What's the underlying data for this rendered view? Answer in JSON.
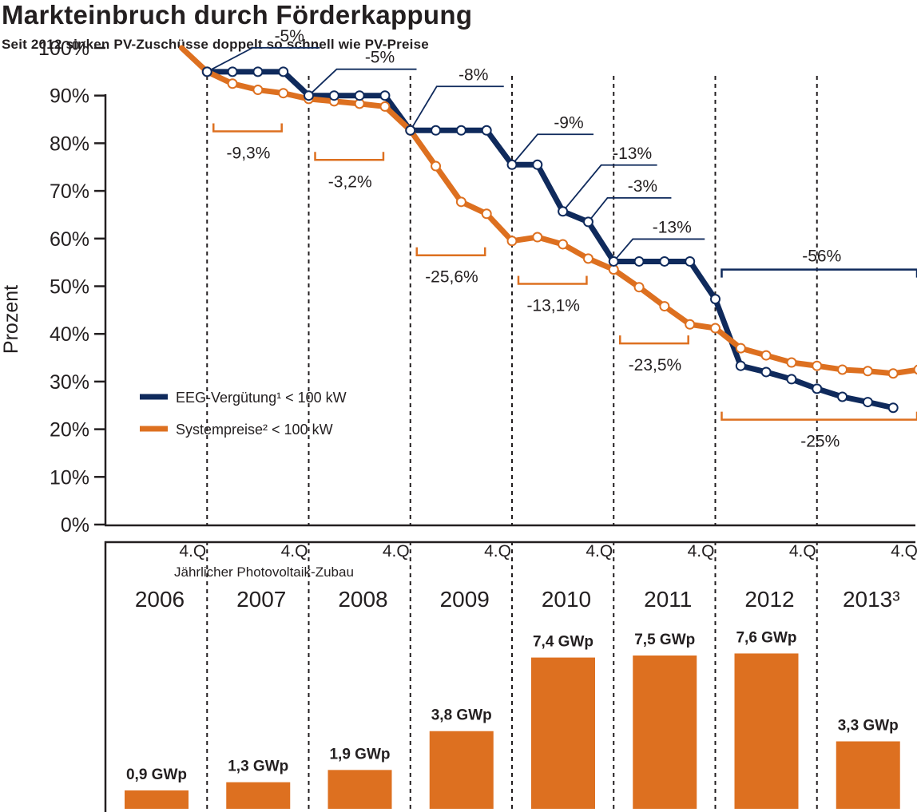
{
  "title": "Markteinbruch durch Förderkappung",
  "subtitle": "Seit 2012 sinken PV-Zuschüsse doppelt so schnell wie PV-Preise",
  "colors": {
    "eeg": "#0f2a5c",
    "system": "#dd7020",
    "text": "#231f20"
  },
  "chart_data": [
    {
      "type": "line",
      "ylabel": "Prozent",
      "ylim": [
        0,
        100
      ],
      "yticks": [
        "0%",
        "10%",
        "20%",
        "30%",
        "40%",
        "50%",
        "60%",
        "70%",
        "80%",
        "90%",
        "100%"
      ],
      "quarter_label": "4.Q",
      "years": [
        "2006",
        "2007",
        "2008",
        "2009",
        "2010",
        "2011",
        "2012",
        "2013³"
      ],
      "legend_position": "center-left",
      "legend": [
        {
          "label": "EEG-Vergütung¹ < 100 kW",
          "color": "#0f2a5c"
        },
        {
          "label": "Systempreise² < 100 kW",
          "color": "#dd7020"
        }
      ],
      "series": [
        {
          "name": "EEG-Vergütung¹ < 100 kW",
          "points": [
            [
              2007.0,
              95
            ],
            [
              2007.25,
              95
            ],
            [
              2007.5,
              95
            ],
            [
              2007.75,
              95
            ],
            [
              2008.0,
              90
            ],
            [
              2008.25,
              90
            ],
            [
              2008.5,
              90
            ],
            [
              2008.75,
              90
            ],
            [
              2009.0,
              82.7
            ],
            [
              2009.25,
              82.7
            ],
            [
              2009.5,
              82.7
            ],
            [
              2009.75,
              82.7
            ],
            [
              2010.0,
              75.5
            ],
            [
              2010.25,
              75.5
            ],
            [
              2010.5,
              65.7
            ],
            [
              2010.75,
              63.5
            ],
            [
              2011.0,
              55.2
            ],
            [
              2011.25,
              55.2
            ],
            [
              2011.5,
              55.2
            ],
            [
              2011.75,
              55.2
            ],
            [
              2012.0,
              47.3
            ],
            [
              2012.25,
              33.3
            ],
            [
              2012.5,
              32.0
            ],
            [
              2012.75,
              30.5
            ],
            [
              2013.0,
              28.5
            ],
            [
              2013.25,
              26.8
            ],
            [
              2013.5,
              25.7
            ],
            [
              2013.75,
              24.5
            ]
          ]
        },
        {
          "name": "Systempreise² < 100 kW",
          "points": [
            [
              2006.75,
              100
            ],
            [
              2007.0,
              95
            ],
            [
              2007.25,
              92.5
            ],
            [
              2007.5,
              91.2
            ],
            [
              2007.75,
              90.5
            ],
            [
              2008.0,
              89.3
            ],
            [
              2008.25,
              88.8
            ],
            [
              2008.5,
              88.3
            ],
            [
              2008.75,
              87.7
            ],
            [
              2009.0,
              82.7
            ],
            [
              2009.25,
              75.2
            ],
            [
              2009.5,
              67.7
            ],
            [
              2009.75,
              65.2
            ],
            [
              2010.0,
              59.5
            ],
            [
              2010.25,
              60.3
            ],
            [
              2010.5,
              58.8
            ],
            [
              2010.75,
              55.8
            ],
            [
              2011.0,
              53.5
            ],
            [
              2011.25,
              49.8
            ],
            [
              2011.5,
              45.8
            ],
            [
              2011.75,
              42.0
            ],
            [
              2012.0,
              41.2
            ],
            [
              2012.25,
              37.0
            ],
            [
              2012.5,
              35.5
            ],
            [
              2012.75,
              34.0
            ],
            [
              2013.0,
              33.3
            ],
            [
              2013.25,
              32.5
            ],
            [
              2013.5,
              32.2
            ],
            [
              2013.75,
              31.7
            ],
            [
              2014.0,
              32.5
            ]
          ]
        }
      ],
      "annotations_eeg": [
        {
          "text": "-5%",
          "x": 2007.0,
          "y": 95
        },
        {
          "text": "-5%",
          "x": 2008.0,
          "y": 90
        },
        {
          "text": "-8%",
          "x": 2009.0,
          "y": 82.7
        },
        {
          "text": "-9%",
          "x": 2010.0,
          "y": 75.5
        },
        {
          "text": "-13%",
          "x": 2010.5,
          "y": 65.7
        },
        {
          "text": "-3%",
          "x": 2010.75,
          "y": 63.5
        },
        {
          "text": "-13%",
          "x": 2011.0,
          "y": 55.2
        }
      ],
      "annotations_system": [
        {
          "text": "-9,3%",
          "from": 2007.0,
          "to": 2007.75,
          "y": 82.5
        },
        {
          "text": "-3,2%",
          "from": 2008.0,
          "to": 2008.75,
          "y": 76.5
        },
        {
          "text": "-25,6%",
          "from": 2009.0,
          "to": 2009.75,
          "y": 56.5
        },
        {
          "text": "-13,1%",
          "from": 2010.0,
          "to": 2010.75,
          "y": 50.5
        },
        {
          "text": "-23,5%",
          "from": 2011.0,
          "to": 2011.75,
          "y": 38.0
        },
        {
          "text": "-25%",
          "from": 2012.0,
          "to": 2014.0,
          "y": 22.0
        }
      ],
      "bracket_eeg": {
        "text": "-56%",
        "from": 2012.0,
        "to": 2014.0,
        "y": 53.5
      }
    },
    {
      "type": "bar",
      "title": "Jährlicher Photovoltaik-Zubau",
      "categories": [
        "2006",
        "2007",
        "2008",
        "2009",
        "2010",
        "2011",
        "2012",
        "2013³"
      ],
      "values": [
        0.9,
        1.3,
        1.9,
        3.8,
        7.4,
        7.5,
        7.6,
        3.3
      ],
      "value_labels": [
        "0,9 GWp",
        "1,3 GWp",
        "1,9 GWp",
        "3,8 GWp",
        "7,4 GWp",
        "7,5 GWp",
        "7,6 GWp",
        "3,3 GWp"
      ],
      "unit": "GWp"
    }
  ]
}
